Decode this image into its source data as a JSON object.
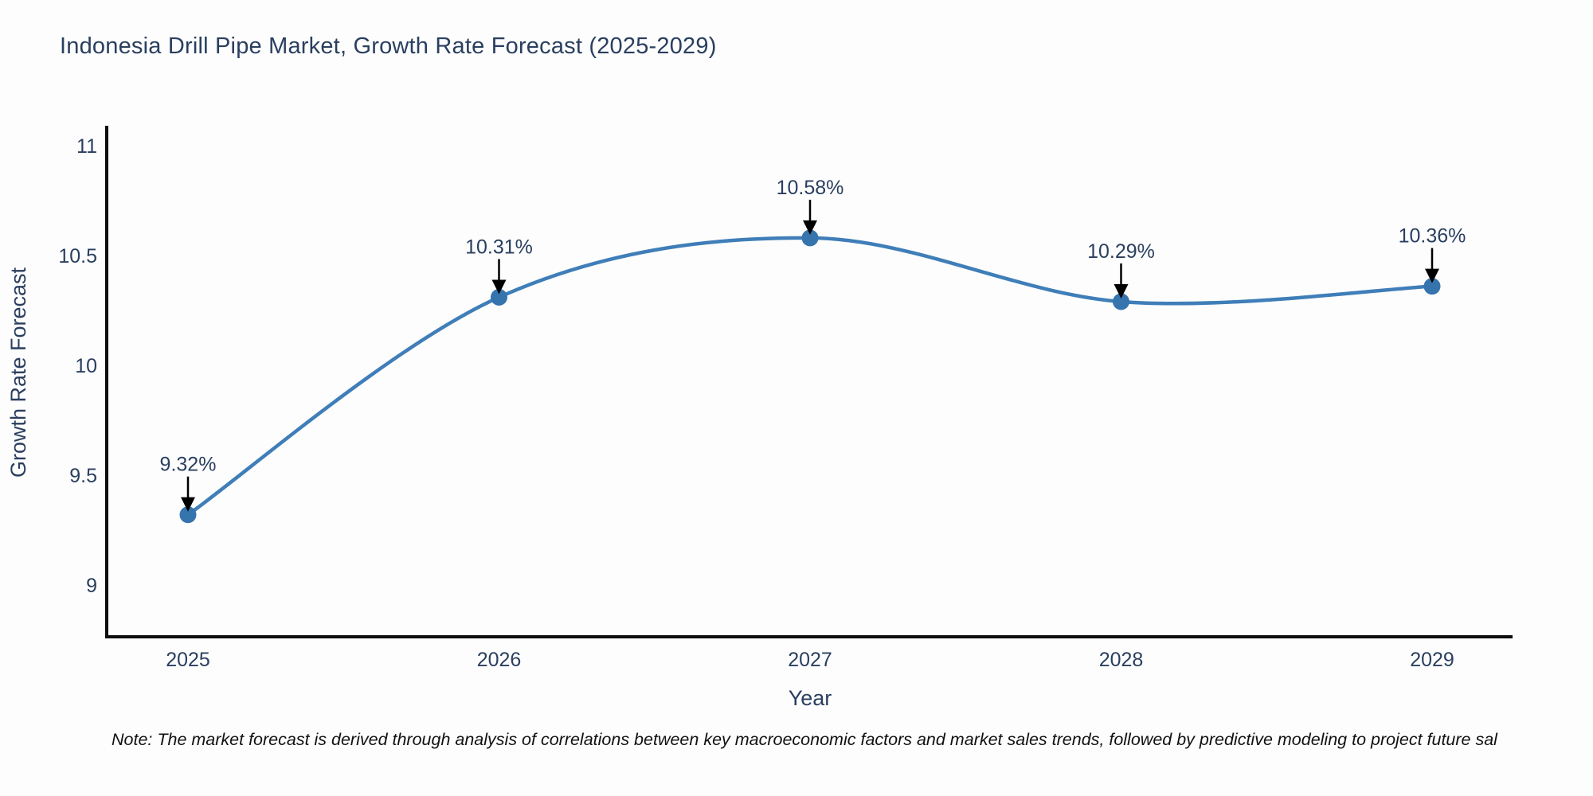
{
  "title": "Indonesia Drill Pipe Market, Growth Rate Forecast (2025-2029)",
  "note": "Note: The market forecast is derived through analysis of correlations between key macroeconomic factors and market sales trends, followed by predictive modeling to project future sal",
  "chart_data": {
    "type": "line",
    "title": "Indonesia Drill Pipe Market, Growth Rate Forecast (2025-2029)",
    "xlabel": "Year",
    "ylabel": "Growth Rate Forecast",
    "categories": [
      "2025",
      "2026",
      "2027",
      "2028",
      "2029"
    ],
    "values": [
      9.32,
      10.31,
      10.58,
      10.29,
      10.36
    ],
    "point_labels": [
      "9.32%",
      "10.31%",
      "10.58%",
      "10.29%",
      "10.36%"
    ],
    "ytick_values": [
      9,
      9.5,
      10,
      10.5,
      11
    ],
    "ytick_labels": [
      "9",
      "9.5",
      "10",
      "10.5",
      "11"
    ],
    "ylim": [
      8.77,
      11.08
    ],
    "line_shape": "spline",
    "grid": false,
    "legend_position": "none",
    "colors": {
      "line": "#3f7eb8",
      "marker": "#3674ad",
      "axis": "#0d0d0d",
      "text": "#2a3f5f",
      "annotation_text": "#2a3f5f",
      "annotation_arrow": "#000000",
      "background": "#fdfdfd"
    }
  }
}
